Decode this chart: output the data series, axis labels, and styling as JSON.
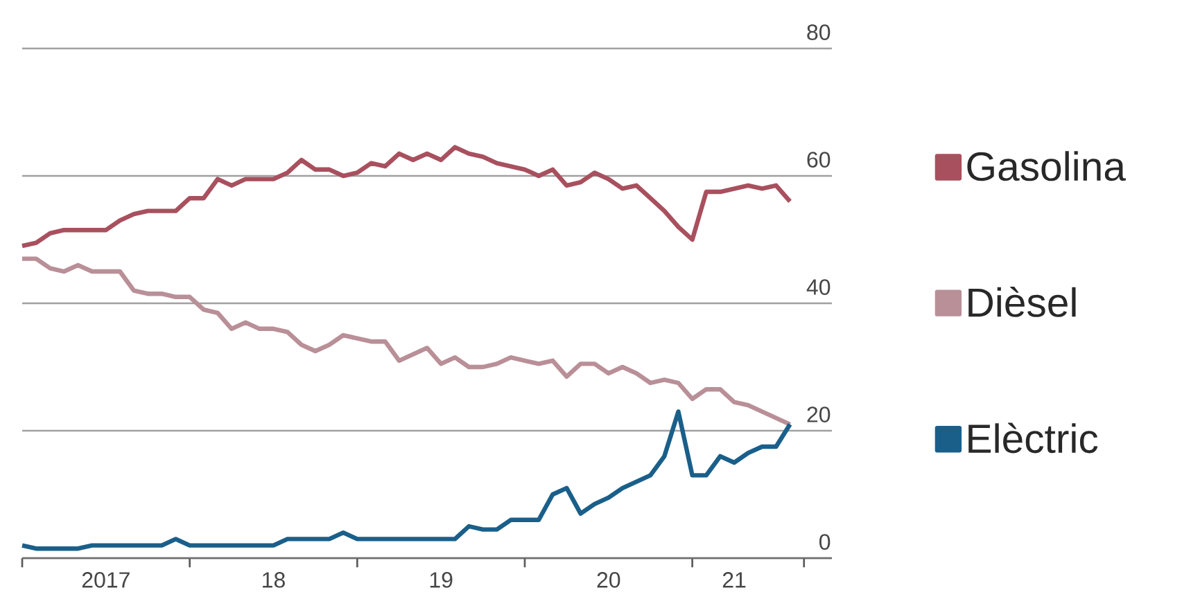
{
  "chart_data": {
    "type": "line",
    "x": [
      "2017-01",
      "2017-02",
      "2017-03",
      "2017-04",
      "2017-05",
      "2017-06",
      "2017-07",
      "2017-08",
      "2017-09",
      "2017-10",
      "2017-11",
      "2017-12",
      "2018-01",
      "2018-02",
      "2018-03",
      "2018-04",
      "2018-05",
      "2018-06",
      "2018-07",
      "2018-08",
      "2018-09",
      "2018-10",
      "2018-11",
      "2018-12",
      "2019-01",
      "2019-02",
      "2019-03",
      "2019-04",
      "2019-05",
      "2019-06",
      "2019-07",
      "2019-08",
      "2019-09",
      "2019-10",
      "2019-11",
      "2019-12",
      "2020-01",
      "2020-02",
      "2020-03",
      "2020-04",
      "2020-05",
      "2020-06",
      "2020-07",
      "2020-08",
      "2020-09",
      "2020-10",
      "2020-11",
      "2020-12",
      "2021-01",
      "2021-02",
      "2021-03",
      "2021-04",
      "2021-05",
      "2021-06",
      "2021-07",
      "2021-08"
    ],
    "series": [
      {
        "name": "Gasolina",
        "color": "#a8505e",
        "values": [
          49,
          49.5,
          51,
          51.5,
          51.5,
          51.5,
          51.5,
          53,
          54,
          54.5,
          54.5,
          54.5,
          56.5,
          56.5,
          59.5,
          58.5,
          59.5,
          59.5,
          59.5,
          60.5,
          62.5,
          61,
          61,
          60,
          60.5,
          62,
          61.5,
          63.5,
          62.5,
          63.5,
          62.5,
          64.5,
          63.5,
          63,
          62,
          61.5,
          61,
          60,
          61,
          58.5,
          59,
          60.5,
          59.5,
          58,
          58.5,
          56.5,
          54.5,
          52,
          50,
          57.5,
          57.5,
          58,
          58.5,
          58,
          58.5,
          56
        ]
      },
      {
        "name": "Dièsel",
        "color": "#b98f98",
        "values": [
          47,
          47,
          45.5,
          45,
          46,
          45,
          45,
          45,
          42,
          41.5,
          41.5,
          41,
          41,
          39,
          38.5,
          36,
          37,
          36,
          36,
          35.5,
          33.5,
          32.5,
          33.5,
          35,
          34.5,
          34,
          34,
          31,
          32,
          33,
          30.5,
          31.5,
          30,
          30,
          30.5,
          31.5,
          31,
          30.5,
          31,
          28.5,
          30.5,
          30.5,
          29,
          30,
          29,
          27.5,
          28,
          27.5,
          25,
          26.5,
          26.5,
          24.5,
          24,
          23,
          22,
          21
        ]
      },
      {
        "name": "Elèctric",
        "color": "#1a5f8a",
        "values": [
          2,
          1.5,
          1.5,
          1.5,
          1.5,
          2,
          2,
          2,
          2,
          2,
          2,
          3,
          2,
          2,
          2,
          2,
          2,
          2,
          2,
          3,
          3,
          3,
          3,
          4,
          3,
          3,
          3,
          3,
          3,
          3,
          3,
          3,
          5,
          4.5,
          4.5,
          6,
          6,
          6,
          10,
          11,
          7,
          8.5,
          9.5,
          11,
          12,
          13,
          16,
          23,
          13,
          13,
          16,
          15,
          16.5,
          17.5,
          17.5,
          21
        ]
      }
    ],
    "xlim": [
      "2017-01",
      "2021-11"
    ],
    "xticks": [
      {
        "value": "2017-01",
        "label": null
      },
      {
        "value": "2017-07",
        "label": "2017"
      },
      {
        "value": "2018-01",
        "label": null
      },
      {
        "value": "2018-07",
        "label": "18"
      },
      {
        "value": "2019-01",
        "label": null
      },
      {
        "value": "2019-07",
        "label": "19"
      },
      {
        "value": "2020-01",
        "label": null
      },
      {
        "value": "2020-07",
        "label": "20"
      },
      {
        "value": "2021-01",
        "label": null
      },
      {
        "value": "2021-04",
        "label": "21"
      },
      {
        "value": "2021-09",
        "label": null
      }
    ],
    "ylim": [
      0,
      80
    ],
    "yticks": [
      0,
      20,
      40,
      60,
      80
    ],
    "grid": "y",
    "legend": "right",
    "marker": "none",
    "line_style": "solid"
  }
}
